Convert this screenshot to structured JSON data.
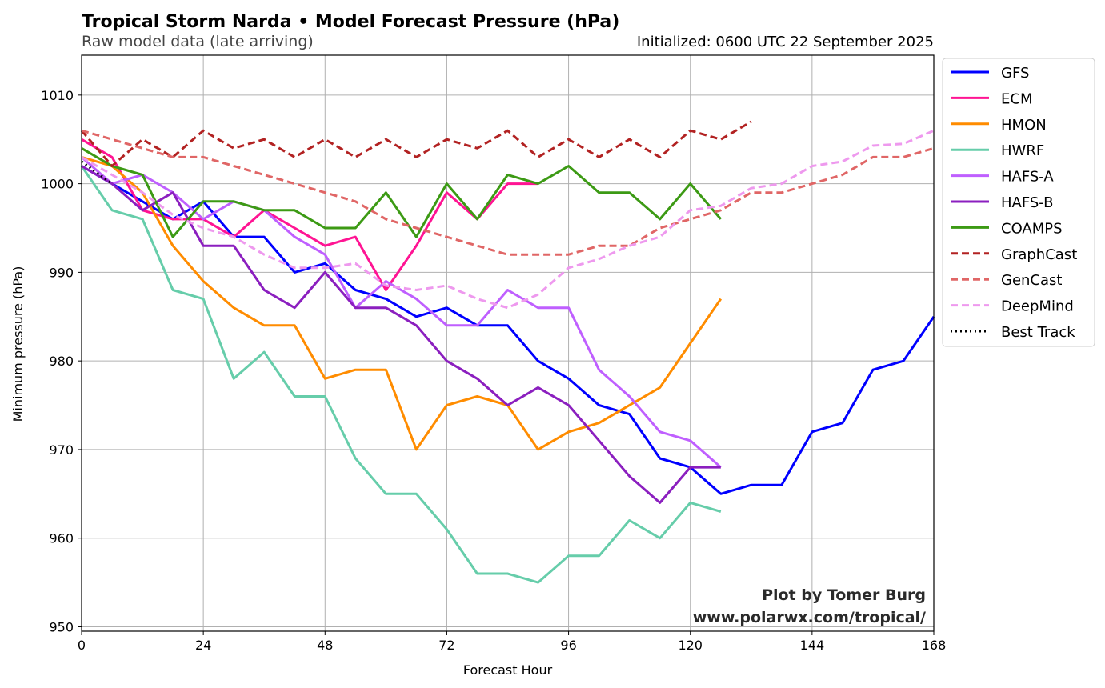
{
  "chart_data": {
    "type": "line",
    "title": "Tropical Storm Narda • Model Forecast Pressure (hPa)",
    "subtitle": "Raw model data (late arriving)",
    "initialized": "Initialized: 0600 UTC 22 September 2025",
    "xlabel": "Forecast Hour",
    "ylabel": "Minimum pressure (hPa)",
    "xlim": [
      0,
      168
    ],
    "ylim": [
      949.5,
      1014.5
    ],
    "xticks": [
      0,
      24,
      48,
      72,
      96,
      120,
      144,
      168
    ],
    "yticks": [
      950,
      960,
      970,
      980,
      990,
      1000,
      1010
    ],
    "grid": true,
    "legend_placement": "outside right",
    "credit": [
      "Plot by Tomer Burg",
      "www.polarwx.com/tropical/"
    ],
    "series": [
      {
        "name": "GFS",
        "color": "#0000ff",
        "style": "solid",
        "x": [
          0,
          6,
          12,
          18,
          24,
          30,
          36,
          42,
          48,
          54,
          60,
          66,
          72,
          78,
          84,
          90,
          96,
          102,
          108,
          114,
          120,
          126,
          132,
          138,
          144,
          150,
          156,
          162,
          168
        ],
        "y": [
          1002,
          1000,
          998,
          996,
          998,
          994,
          994,
          990,
          991,
          988,
          987,
          985,
          986,
          984,
          984,
          980,
          978,
          975,
          974,
          969,
          968,
          965,
          966,
          966,
          972,
          973,
          979,
          980,
          985
        ]
      },
      {
        "name": "ECM",
        "color": "#ff1493",
        "style": "solid",
        "x": [
          0,
          6,
          12,
          18,
          24,
          30,
          36,
          42,
          48,
          54,
          60,
          66,
          72,
          78,
          84,
          90
        ],
        "y": [
          1005,
          1003,
          997,
          996,
          996,
          994,
          997,
          995,
          993,
          994,
          988,
          993,
          999,
          996,
          1000,
          1000
        ]
      },
      {
        "name": "HMON",
        "color": "#ff8c00",
        "style": "solid",
        "x": [
          0,
          6,
          12,
          18,
          24,
          30,
          36,
          42,
          48,
          54,
          60,
          66,
          72,
          78,
          84,
          90,
          96,
          102,
          108,
          114,
          120,
          126
        ],
        "y": [
          1003,
          1002,
          999,
          993,
          989,
          986,
          984,
          984,
          978,
          979,
          979,
          970,
          975,
          976,
          975,
          970,
          972,
          973,
          975,
          977,
          982,
          987
        ]
      },
      {
        "name": "HWRF",
        "color": "#66cdaa",
        "style": "solid",
        "x": [
          0,
          6,
          12,
          18,
          24,
          30,
          36,
          42,
          48,
          54,
          60,
          66,
          72,
          78,
          84,
          90,
          96,
          102,
          108,
          114,
          120,
          126
        ],
        "y": [
          1002,
          997,
          996,
          988,
          987,
          978,
          981,
          976,
          976,
          969,
          965,
          965,
          961,
          956,
          956,
          955,
          958,
          958,
          962,
          960,
          964,
          963
        ]
      },
      {
        "name": "HAFS-A",
        "color": "#bf5fff",
        "style": "solid",
        "x": [
          0,
          6,
          12,
          18,
          24,
          30,
          36,
          42,
          48,
          54,
          60,
          66,
          72,
          78,
          84,
          90,
          96,
          102,
          108,
          114,
          120,
          126
        ],
        "y": [
          1003,
          1000,
          1001,
          999,
          996,
          998,
          997,
          994,
          992,
          986,
          989,
          987,
          984,
          984,
          988,
          986,
          986,
          979,
          976,
          972,
          971,
          968
        ]
      },
      {
        "name": "HAFS-B",
        "color": "#8b1fbf",
        "style": "solid",
        "x": [
          0,
          6,
          12,
          18,
          24,
          30,
          36,
          42,
          48,
          54,
          60,
          66,
          72,
          78,
          84,
          90,
          96,
          102,
          108,
          114,
          120,
          126
        ],
        "y": [
          1002,
          1000,
          997,
          999,
          993,
          993,
          988,
          986,
          990,
          986,
          986,
          984,
          980,
          978,
          975,
          977,
          975,
          971,
          967,
          964,
          968,
          968
        ]
      },
      {
        "name": "COAMPS",
        "color": "#3c9a14",
        "style": "solid",
        "x": [
          0,
          6,
          12,
          18,
          24,
          30,
          36,
          42,
          48,
          54,
          60,
          66,
          72,
          78,
          84,
          90,
          96,
          102,
          108,
          114,
          120,
          126
        ],
        "y": [
          1004,
          1002,
          1001,
          994,
          998,
          998,
          997,
          997,
          995,
          995,
          999,
          994,
          1000,
          996,
          1001,
          1000,
          1002,
          999,
          999,
          996,
          1000,
          996
        ]
      },
      {
        "name": "GraphCast",
        "color": "#b22222",
        "style": "dashed",
        "x": [
          0,
          6,
          12,
          18,
          24,
          30,
          36,
          42,
          48,
          54,
          60,
          66,
          72,
          78,
          84,
          90,
          96,
          102,
          108,
          114,
          120,
          126,
          132
        ],
        "y": [
          1006,
          1002,
          1005,
          1003,
          1006,
          1004,
          1005,
          1003,
          1005,
          1003,
          1005,
          1003,
          1005,
          1004,
          1006,
          1003,
          1005,
          1003,
          1005,
          1003,
          1006,
          1005,
          1007
        ]
      },
      {
        "name": "GenCast",
        "color": "#e06666",
        "style": "dashed",
        "x": [
          0,
          6,
          12,
          18,
          24,
          30,
          36,
          42,
          48,
          54,
          60,
          66,
          72,
          78,
          84,
          90,
          96,
          102,
          108,
          114,
          120,
          126,
          132,
          138,
          144,
          150,
          156,
          162,
          168
        ],
        "y": [
          1006,
          1005,
          1004,
          1003,
          1003,
          1002,
          1001,
          1000,
          999,
          998,
          996,
          995,
          994,
          993,
          992,
          992,
          992,
          993,
          993,
          995,
          996,
          997,
          999,
          999,
          1000,
          1001,
          1003,
          1003,
          1004
        ]
      },
      {
        "name": "DeepMind",
        "color": "#ee99ee",
        "style": "dashed",
        "x": [
          0,
          6,
          12,
          18,
          24,
          30,
          36,
          42,
          48,
          54,
          60,
          66,
          72,
          78,
          84,
          90,
          96,
          102,
          108,
          114,
          120,
          126,
          132,
          138,
          144,
          150,
          156,
          162,
          168
        ],
        "y": [
          1003,
          1001,
          999,
          996.5,
          995,
          994,
          992,
          990.5,
          990.5,
          991,
          988.5,
          988,
          988.5,
          987,
          986,
          987.5,
          990.5,
          991.5,
          993,
          994,
          997,
          997.5,
          999.5,
          1000,
          1002,
          1002.5,
          1004.3,
          1004.5,
          1006
        ]
      },
      {
        "name": "Best Track",
        "color": "#000000",
        "style": "dotted",
        "x": [
          0,
          6
        ],
        "y": [
          1002.5,
          1000
        ]
      }
    ]
  }
}
